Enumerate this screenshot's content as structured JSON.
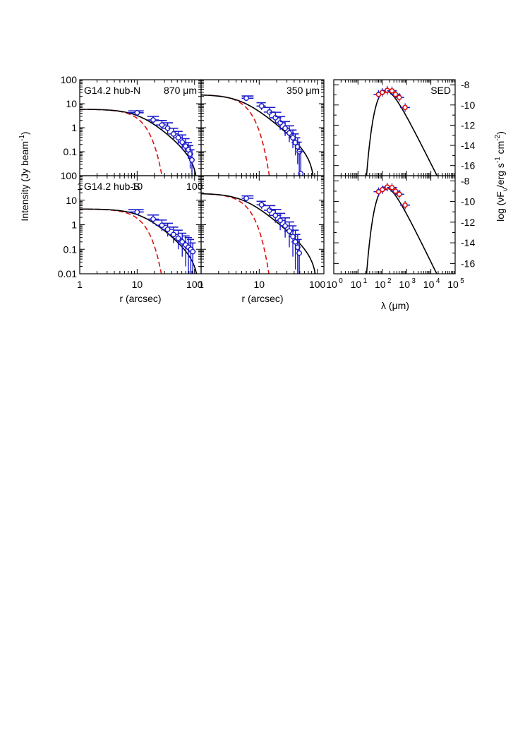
{
  "chart_data": [
    {
      "type": "scatter",
      "panel": "top-left",
      "labels": [
        "G14.2 hub-N",
        "870 μm"
      ],
      "xscale": "log",
      "yscale": "log",
      "xlim": [
        1,
        130
      ],
      "ylim": [
        0.01,
        100
      ],
      "xticks": [
        "1",
        "10",
        "100"
      ],
      "yticks": [
        "100",
        "10",
        "1",
        "0.1"
      ],
      "points": [
        {
          "x": 10,
          "y": 4.2,
          "ylo": 3.4,
          "yhi": 5.0,
          "xlo": 7,
          "xhi": 13
        },
        {
          "x": 19,
          "y": 2.1,
          "ylo": 1.4,
          "yhi": 3.0,
          "xlo": 15,
          "xhi": 24
        },
        {
          "x": 27,
          "y": 1.3,
          "ylo": 0.75,
          "yhi": 2.0,
          "xlo": 21,
          "xhi": 33
        },
        {
          "x": 34,
          "y": 0.95,
          "ylo": 0.5,
          "yhi": 1.6,
          "xlo": 27,
          "xhi": 42
        },
        {
          "x": 43,
          "y": 0.55,
          "ylo": 0.3,
          "yhi": 0.95,
          "xlo": 35,
          "xhi": 52
        },
        {
          "x": 52,
          "y": 0.38,
          "ylo": 0.19,
          "yhi": 0.7,
          "xlo": 43,
          "xhi": 62
        },
        {
          "x": 61,
          "y": 0.25,
          "ylo": 0.12,
          "yhi": 0.5,
          "xlo": 51,
          "xhi": 72
        },
        {
          "x": 70,
          "y": 0.17,
          "ylo": 0.08,
          "yhi": 0.35,
          "xlo": 60,
          "xhi": 82
        },
        {
          "x": 78,
          "y": 0.12,
          "ylo": 0.05,
          "yhi": 0.24,
          "xlo": 67,
          "xhi": 90
        },
        {
          "x": 84,
          "y": 0.08,
          "ylo": 0.02,
          "yhi": 0.18,
          "xlo": 74,
          "xhi": 95
        },
        {
          "x": 90,
          "y": 0.045,
          "ylo": 0.01,
          "yhi": 0.12,
          "xlo": 80,
          "xhi": 100
        }
      ],
      "model": {
        "level": 5.9,
        "r0": 11,
        "cut": 115
      },
      "beam": {
        "level": 5.9,
        "fwhm": 12
      }
    },
    {
      "type": "scatter",
      "panel": "top-middle",
      "labels": [
        "350 μm"
      ],
      "xscale": "log",
      "yscale": "log",
      "xlim": [
        1,
        130
      ],
      "ylim": [
        0.01,
        100
      ],
      "xticks": [],
      "yticks": [],
      "points": [
        {
          "x": 6,
          "y": 17,
          "ylo": 13,
          "yhi": 21,
          "xlo": 5,
          "xhi": 8
        },
        {
          "x": 11,
          "y": 8,
          "ylo": 5.5,
          "yhi": 11,
          "xlo": 9,
          "xhi": 13
        },
        {
          "x": 15,
          "y": 4.5,
          "ylo": 2.8,
          "yhi": 7,
          "xlo": 12,
          "xhi": 19
        },
        {
          "x": 19,
          "y": 2.6,
          "ylo": 1.5,
          "yhi": 4.4,
          "xlo": 15,
          "xhi": 24
        },
        {
          "x": 23,
          "y": 1.6,
          "ylo": 0.8,
          "yhi": 2.9,
          "xlo": 19,
          "xhi": 28
        },
        {
          "x": 28,
          "y": 0.95,
          "ylo": 0.45,
          "yhi": 1.8,
          "xlo": 23,
          "xhi": 34
        },
        {
          "x": 33,
          "y": 0.6,
          "ylo": 0.25,
          "yhi": 1.2,
          "xlo": 27,
          "xhi": 40
        },
        {
          "x": 38,
          "y": 0.38,
          "ylo": 0.14,
          "yhi": 0.8,
          "xlo": 32,
          "xhi": 44
        },
        {
          "x": 42,
          "y": 0.24,
          "ylo": 0.07,
          "yhi": 0.55,
          "xlo": 36,
          "xhi": 48
        },
        {
          "x": 46,
          "y": 0.16,
          "ylo": 0.03,
          "yhi": 0.38,
          "xlo": 41,
          "xhi": 51
        },
        {
          "x": 49,
          "y": 0.1,
          "ylo": 0.01,
          "yhi": 0.25,
          "xlo": 44,
          "xhi": 54
        },
        {
          "x": 52,
          "y": 0.012,
          "ylo": 0.01,
          "yhi": 0.1,
          "xlo": 47,
          "xhi": 57
        }
      ],
      "model": {
        "level": 24,
        "r0": 5,
        "cut": 90
      },
      "beam": {
        "level": 24,
        "fwhm": 6
      }
    },
    {
      "type": "line",
      "panel": "top-right",
      "labels": [
        "SED"
      ],
      "xscale": "log",
      "xlim": [
        1,
        100000
      ],
      "ylim": [
        -17,
        -7.5
      ],
      "xticks": [],
      "yticks": [
        "-8",
        "-10",
        "-12",
        "-14",
        "-16"
      ],
      "points": [
        {
          "x": 70,
          "y": -8.95
        },
        {
          "x": 100,
          "y": -8.75
        },
        {
          "x": 160,
          "y": -8.55
        },
        {
          "x": 250,
          "y": -8.6
        },
        {
          "x": 350,
          "y": -8.95
        },
        {
          "x": 500,
          "y": -9.25
        },
        {
          "x": 870,
          "y": -10.25
        }
      ],
      "model": {
        "peak_x": 160,
        "peak_y": -8.6,
        "rise_start": 11
      }
    },
    {
      "type": "scatter",
      "panel": "bottom-left",
      "labels": [
        "G14.2 hub-S"
      ],
      "xscale": "log",
      "yscale": "log",
      "xlim": [
        1,
        130
      ],
      "ylim": [
        0.01,
        100
      ],
      "xticks": [
        "1",
        "10",
        "100"
      ],
      "yticks": [
        "100",
        "10",
        "1",
        "0.1",
        "0.01"
      ],
      "points": [
        {
          "x": 10,
          "y": 3.3,
          "ylo": 2.6,
          "yhi": 4.1,
          "xlo": 7,
          "xhi": 13
        },
        {
          "x": 19,
          "y": 1.7,
          "ylo": 1.1,
          "yhi": 2.5,
          "xlo": 15,
          "xhi": 24
        },
        {
          "x": 27,
          "y": 0.95,
          "ylo": 0.55,
          "yhi": 1.55,
          "xlo": 21,
          "xhi": 33
        },
        {
          "x": 34,
          "y": 0.65,
          "ylo": 0.33,
          "yhi": 1.15,
          "xlo": 27,
          "xhi": 42
        },
        {
          "x": 43,
          "y": 0.4,
          "ylo": 0.18,
          "yhi": 0.8,
          "xlo": 35,
          "xhi": 52
        },
        {
          "x": 52,
          "y": 0.28,
          "ylo": 0.1,
          "yhi": 0.6,
          "xlo": 43,
          "xhi": 62
        },
        {
          "x": 61,
          "y": 0.2,
          "ylo": 0.05,
          "yhi": 0.45,
          "xlo": 51,
          "xhi": 72
        },
        {
          "x": 70,
          "y": 0.15,
          "ylo": 0.02,
          "yhi": 0.35,
          "xlo": 60,
          "xhi": 82
        },
        {
          "x": 78,
          "y": 0.12,
          "ylo": 0.01,
          "yhi": 0.3,
          "xlo": 67,
          "xhi": 90
        },
        {
          "x": 86,
          "y": 0.1,
          "ylo": 0.01,
          "yhi": 0.25,
          "xlo": 74,
          "xhi": 98
        },
        {
          "x": 93,
          "y": 0.08,
          "ylo": 0.01,
          "yhi": 0.18,
          "xlo": 80,
          "xhi": 105
        }
      ],
      "model": {
        "level": 4.4,
        "r0": 12,
        "cut": 120
      },
      "beam": {
        "level": 4.4,
        "fwhm": 12
      }
    },
    {
      "type": "scatter",
      "panel": "bottom-middle",
      "labels": [],
      "xscale": "log",
      "yscale": "log",
      "xlim": [
        1,
        130
      ],
      "ylim": [
        0.01,
        100
      ],
      "xticks": [
        "1",
        "10",
        "100"
      ],
      "yticks": [],
      "points": [
        {
          "x": 6,
          "y": 12,
          "ylo": 9,
          "yhi": 15,
          "xlo": 5,
          "xhi": 8
        },
        {
          "x": 11,
          "y": 6.5,
          "ylo": 4.5,
          "yhi": 9,
          "xlo": 9,
          "xhi": 13
        },
        {
          "x": 15,
          "y": 3.9,
          "ylo": 2.4,
          "yhi": 6,
          "xlo": 12,
          "xhi": 19
        },
        {
          "x": 19,
          "y": 2.4,
          "ylo": 1.2,
          "yhi": 4.2,
          "xlo": 15,
          "xhi": 24
        },
        {
          "x": 23,
          "y": 1.5,
          "ylo": 0.6,
          "yhi": 2.9,
          "xlo": 19,
          "xhi": 28
        },
        {
          "x": 28,
          "y": 0.9,
          "ylo": 0.3,
          "yhi": 1.9,
          "xlo": 23,
          "xhi": 34
        },
        {
          "x": 33,
          "y": 0.55,
          "ylo": 0.12,
          "yhi": 1.3,
          "xlo": 27,
          "xhi": 40
        },
        {
          "x": 38,
          "y": 0.33,
          "ylo": 0.05,
          "yhi": 0.9,
          "xlo": 32,
          "xhi": 44
        },
        {
          "x": 42,
          "y": 0.2,
          "ylo": 0.015,
          "yhi": 0.6,
          "xlo": 36,
          "xhi": 48
        },
        {
          "x": 46,
          "y": 0.12,
          "ylo": 0.01,
          "yhi": 0.4,
          "xlo": 41,
          "xhi": 51
        },
        {
          "x": 49,
          "y": 0.07,
          "ylo": 0.01,
          "yhi": 0.25,
          "xlo": 44,
          "xhi": 54
        }
      ],
      "model": {
        "level": 19,
        "r0": 5.5,
        "cut": 100
      },
      "beam": {
        "level": 19,
        "fwhm": 6
      }
    },
    {
      "type": "line",
      "panel": "bottom-right",
      "labels": [],
      "xscale": "log",
      "xlim": [
        1,
        100000
      ],
      "ylim": [
        -17,
        -7.5
      ],
      "xticks": [
        "10",
        "10",
        "10",
        "10",
        "10",
        "10"
      ],
      "xtick_exponents": [
        "0",
        "1",
        "2",
        "3",
        "4",
        "5"
      ],
      "yticks": [
        "-8",
        "-10",
        "-12",
        "-14",
        "-16"
      ],
      "points": [
        {
          "x": 70,
          "y": -9.05
        },
        {
          "x": 100,
          "y": -8.85
        },
        {
          "x": 160,
          "y": -8.6
        },
        {
          "x": 250,
          "y": -8.65
        },
        {
          "x": 350,
          "y": -9.0
        },
        {
          "x": 500,
          "y": -9.3
        },
        {
          "x": 870,
          "y": -10.35
        }
      ],
      "model": {
        "peak_x": 160,
        "peak_y": -8.65,
        "rise_start": 12
      }
    }
  ],
  "axes": {
    "left_ylabel_main": "Intensity (Jy beam",
    "left_ylabel_sup": "-1",
    "left_ylabel_close": ")",
    "xlabel_left": "r (arcsec)",
    "xlabel_middle": "r (arcsec)",
    "xlabel_right_main": "λ (μm)",
    "right_ylabel_main": "log (νF",
    "right_ylabel_sub": "ν",
    "right_ylabel_mid": "/erg s",
    "right_ylabel_sup1": "-1",
    "right_ylabel_mid2": " cm",
    "right_ylabel_sup2": "-2",
    "right_ylabel_close": ")"
  },
  "colors": {
    "data": "#1a1acc",
    "beam": "#dd1111",
    "model": "#000000",
    "sed_marker": "#dd1111"
  }
}
